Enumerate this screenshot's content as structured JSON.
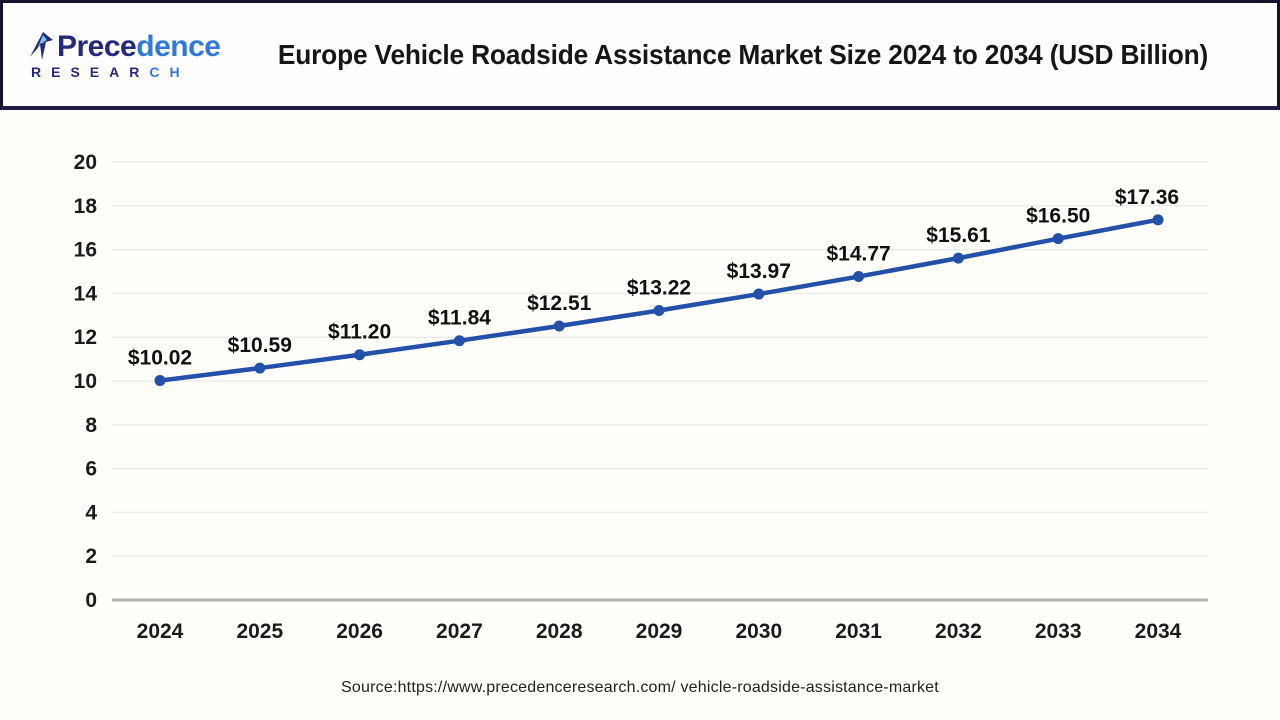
{
  "header": {
    "logo": {
      "brand_dark": "Prece",
      "brand_light": "dence",
      "sub_dark": "RESEAR",
      "sub_light": "CH"
    },
    "title": "Europe Vehicle Roadside Assistance Market Size 2024 to 2034 (USD Billion)"
  },
  "chart_data": {
    "type": "line",
    "title": "Europe Vehicle Roadside Assistance Market Size 2024 to 2034 (USD Billion)",
    "categories": [
      "2024",
      "2025",
      "2026",
      "2027",
      "2028",
      "2029",
      "2030",
      "2031",
      "2032",
      "2033",
      "2034"
    ],
    "values": [
      10.02,
      10.59,
      11.2,
      11.84,
      12.51,
      13.22,
      13.97,
      14.77,
      15.61,
      16.5,
      17.36
    ],
    "point_labels": [
      "$10.02",
      "$10.59",
      "$11.20",
      "$11.84",
      "$12.51",
      "$13.22",
      "$13.97",
      "$14.77",
      "$15.61",
      "$16.50",
      "$17.36"
    ],
    "xlabel": "",
    "ylabel": "",
    "ylim": [
      0,
      20
    ],
    "ytick_step": 2,
    "grid": true,
    "legend": "none",
    "line_color": "#2350a8",
    "marker_color": "#2350a8",
    "gridline_color": "#ececec",
    "axis_line_color": "#b1b1b1"
  },
  "source": {
    "text": "Source:https://www.precedenceresearch.com/ vehicle-roadside-assistance-market"
  },
  "colors": {
    "frame_border": "#14142e",
    "brand_navy": "#232a7c",
    "brand_blue": "#2f7ad9",
    "title_text": "#161616",
    "background": "#fffefa"
  }
}
